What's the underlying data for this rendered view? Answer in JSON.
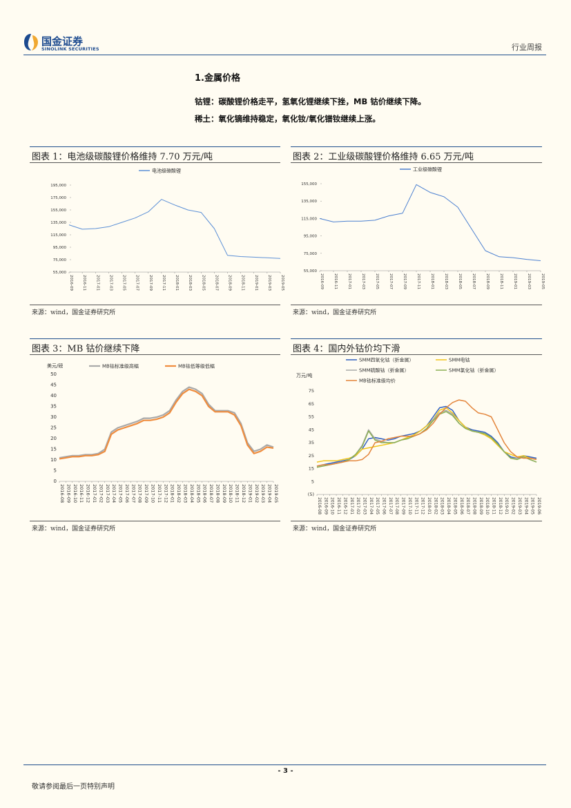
{
  "header": {
    "logo_cn": "国金证券",
    "logo_en": "SINOLINK SECURITIES",
    "report_type": "行业周报"
  },
  "section": {
    "title": "1.金属价格",
    "line1": "钴锂：碳酸锂价格走平，氢氧化锂继续下挫，MB 钴价继续下降。",
    "line2": "稀土：氧化镝维持稳定，氧化钕/氧化镨钕继续上涨。"
  },
  "figures": [
    {
      "title": "图表 1：电池级碳酸锂价格维持 7.70 万元/吨",
      "source": "来源：wind，国金证券研究所"
    },
    {
      "title": "图表 2：工业级碳酸锂价格维持 6.65 万元/吨",
      "source": "来源：wind，国金证券研究所"
    },
    {
      "title": "图表 3：MB 钴价继续下降",
      "source": "来源：wind，国金证券研究所"
    },
    {
      "title": "图表 4：国内外钴价均下滑",
      "source": "来源：wind，国金证券研究所"
    }
  ],
  "chart_data": [
    {
      "type": "line",
      "title": "图表 1：电池级碳酸锂价格维持 7.70 万元/吨",
      "legend": [
        "电池级碳酸锂"
      ],
      "ylim": [
        55000,
        195000
      ],
      "yticks": [
        "195,000",
        "175,000",
        "155,000",
        "135,000",
        "115,000",
        "95,000",
        "75,000",
        "55,000"
      ],
      "categories": [
        "2016-09",
        "2016-11",
        "2017-01",
        "2017-03",
        "2017-05",
        "2017-07",
        "2017-09",
        "2017-11",
        "2018-01",
        "2018-03",
        "2018-05",
        "2018-07",
        "2018-09",
        "2018-11",
        "2019-01",
        "2019-03",
        "2019-05"
      ],
      "series": [
        {
          "name": "电池级碳酸锂",
          "values": [
            131000,
            124000,
            125000,
            128000,
            135000,
            142000,
            152000,
            172000,
            163000,
            155000,
            151000,
            125000,
            82000,
            80000,
            79000,
            78000,
            77000
          ]
        }
      ]
    },
    {
      "type": "line",
      "title": "图表 2：工业级碳酸锂价格维持 6.65 万元/吨",
      "legend": [
        "工业级碳酸锂"
      ],
      "ylim": [
        55000,
        155000
      ],
      "yticks": [
        "155,000",
        "135,000",
        "115,000",
        "95,000",
        "75,000",
        "55,000"
      ],
      "categories": [
        "2016-09",
        "2016-11",
        "2017-01",
        "2017-03",
        "2017-05",
        "2017-07",
        "2017-09",
        "2017-11",
        "2018-01",
        "2018-03",
        "2018-05",
        "2018-07",
        "2018-09",
        "2018-11",
        "2019-01",
        "2019-03",
        "2019-05"
      ],
      "series": [
        {
          "name": "工业级碳酸锂",
          "values": [
            115000,
            111000,
            112000,
            112000,
            113000,
            118000,
            121000,
            154000,
            145000,
            140000,
            128000,
            103000,
            78000,
            71000,
            70000,
            68000,
            66500
          ]
        }
      ]
    },
    {
      "type": "line",
      "title": "图表 3：MB 钴价继续下降",
      "ylabel": "美元/磅",
      "legend": [
        "MB钴标准级高幅",
        "MB钴低等级低幅"
      ],
      "ylim": [
        0,
        50
      ],
      "yticks": [
        "50",
        "45",
        "40",
        "35",
        "30",
        "25",
        "20",
        "15",
        "10",
        "5",
        "0"
      ],
      "categories": [
        "2016-08",
        "2016-09",
        "2016-10",
        "2016-11",
        "2016-12",
        "2017-01",
        "2017-02",
        "2017-03",
        "2017-04",
        "2017-05",
        "2017-06",
        "2017-07",
        "2017-08",
        "2017-09",
        "2017-10",
        "2017-11",
        "2017-12",
        "2018-01",
        "2018-02",
        "2018-03",
        "2018-04",
        "2018-05",
        "2018-06",
        "2018-07",
        "2018-08",
        "2018-09",
        "2018-10",
        "2018-11",
        "2018-12",
        "2019-01",
        "2019-02",
        "2019-03",
        "2019-04",
        "2019-05"
      ],
      "series": [
        {
          "name": "MB钴标准级高幅",
          "values": [
            11,
            11.5,
            12,
            12,
            12.5,
            12.5,
            13,
            15,
            23,
            25,
            26,
            27,
            28,
            29.5,
            29.5,
            30,
            31,
            33,
            38,
            42,
            44,
            43,
            41,
            36,
            33,
            33,
            33,
            32,
            27,
            18,
            14,
            15,
            17,
            16
          ]
        },
        {
          "name": "MB钴低等级低幅",
          "values": [
            10.5,
            11,
            11.5,
            11.5,
            12,
            12,
            12.5,
            14,
            22,
            24,
            25,
            26,
            27,
            28.5,
            28.5,
            29,
            30,
            32,
            37,
            41,
            43,
            42,
            40,
            35,
            32.5,
            32.5,
            32.5,
            31,
            26,
            17,
            13,
            14,
            16,
            15.5
          ]
        }
      ]
    },
    {
      "type": "line",
      "title": "图表 4：国内外钴价均下滑",
      "ylabel": "万元/吨",
      "legend": [
        "SMM四氧化钴（折金属）",
        "SMM电钴",
        "SMM硫酸钴（折金属）",
        "SMM氯化钴（折金属）",
        "MB钴标准级均价"
      ],
      "ylim": [
        -5,
        75
      ],
      "yticks": [
        "75",
        "65",
        "55",
        "45",
        "35",
        "25",
        "15",
        "5",
        "(5)"
      ],
      "categories": [
        "2016-08",
        "2016-09",
        "2016-10",
        "2016-11",
        "2016-12",
        "2017-01",
        "2017-02",
        "2017-03",
        "2017-04",
        "2017-05",
        "2017-06",
        "2017-07",
        "2017-08",
        "2017-09",
        "2017-10",
        "2017-11",
        "2017-12",
        "2018-01",
        "2018-02",
        "2018-03",
        "2018-04",
        "2018-05",
        "2018-06",
        "2018-07",
        "2018-08",
        "2018-09",
        "2018-10",
        "2018-11",
        "2018-12",
        "2019-01",
        "2019-02",
        "2019-03",
        "2019-04",
        "2019-05",
        "2019-06"
      ],
      "series": [
        {
          "name": "SMM四氧化钴（折金属）",
          "values": [
            17,
            18,
            19,
            20,
            21,
            22,
            25,
            30,
            38,
            39,
            38,
            37,
            38,
            40,
            41,
            42,
            44,
            48,
            55,
            62,
            63,
            60,
            52,
            47,
            45,
            44,
            43,
            40,
            35,
            28,
            24,
            23,
            25,
            24,
            23
          ]
        },
        {
          "name": "SMM电钴",
          "values": [
            20,
            21,
            21,
            21,
            22,
            23,
            25,
            30,
            31,
            32,
            33,
            34,
            35,
            37,
            39,
            41,
            44,
            48,
            53,
            60,
            62,
            58,
            52,
            47,
            44,
            43,
            41,
            38,
            33,
            28,
            26,
            24,
            25,
            23,
            22
          ]
        },
        {
          "name": "SMM硫酸钴（折金属）",
          "values": [
            16,
            17,
            18,
            19,
            20,
            22,
            26,
            33,
            45,
            38,
            36,
            35,
            35,
            37,
            38,
            40,
            42,
            46,
            53,
            58,
            60,
            57,
            50,
            46,
            44,
            43,
            42,
            39,
            34,
            28,
            23,
            23,
            24,
            22,
            20
          ]
        },
        {
          "name": "SMM氯化钴（折金属）",
          "values": [
            16,
            17,
            18,
            19,
            20,
            22,
            26,
            32,
            44,
            37,
            35,
            35,
            35,
            37,
            38,
            40,
            42,
            46,
            52,
            57,
            59,
            56,
            50,
            46,
            44,
            43,
            42,
            39,
            34,
            28,
            23,
            22,
            24,
            22,
            20
          ]
        },
        {
          "name": "MB钴标准级均价",
          "values": [
            17,
            18,
            18,
            19,
            20,
            21,
            21,
            22,
            26,
            35,
            36,
            38,
            39,
            40,
            40,
            40,
            42,
            45,
            50,
            57,
            62,
            66,
            68,
            67,
            62,
            58,
            57,
            55,
            45,
            35,
            28,
            24,
            23,
            23,
            22
          ]
        }
      ]
    }
  ],
  "footer": {
    "page": "- 3 -",
    "note": "敬请参阅最后一页特别声明"
  }
}
